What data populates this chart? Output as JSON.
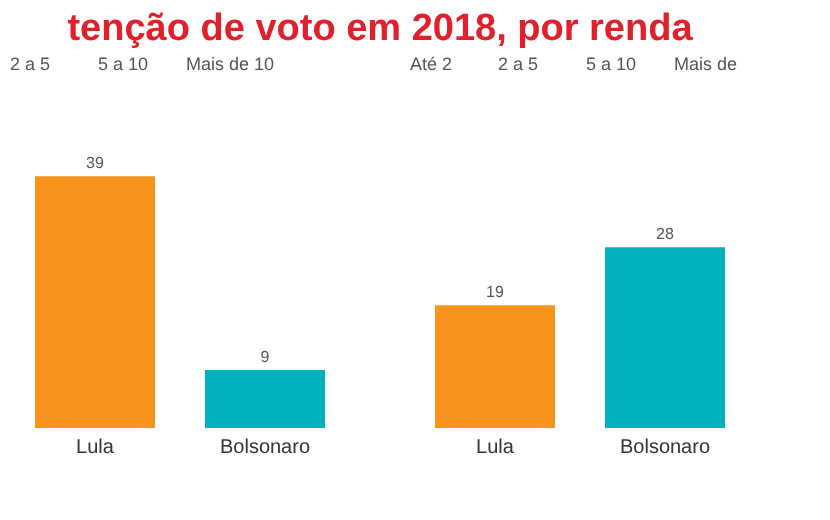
{
  "chart_data": [
    {
      "type": "bar",
      "title": "tenção de voto em 2018, por renda",
      "categories": [
        "Lula",
        "Bolsonaro"
      ],
      "values": [
        39,
        9
      ],
      "colors": [
        "#f7941d",
        "#00b2bf"
      ],
      "data_labels": true,
      "annotations": [
        "2 a 5",
        "5 a 10",
        "Mais de 10"
      ]
    },
    {
      "type": "bar",
      "categories": [
        "Lula",
        "Bolsonaro"
      ],
      "values": [
        19,
        28
      ],
      "colors": [
        "#f7941d",
        "#00b2bf"
      ],
      "data_labels": true,
      "annotations": [
        "Até 2",
        "2 a 5",
        "5 a 10",
        "Mais de"
      ]
    }
  ]
}
